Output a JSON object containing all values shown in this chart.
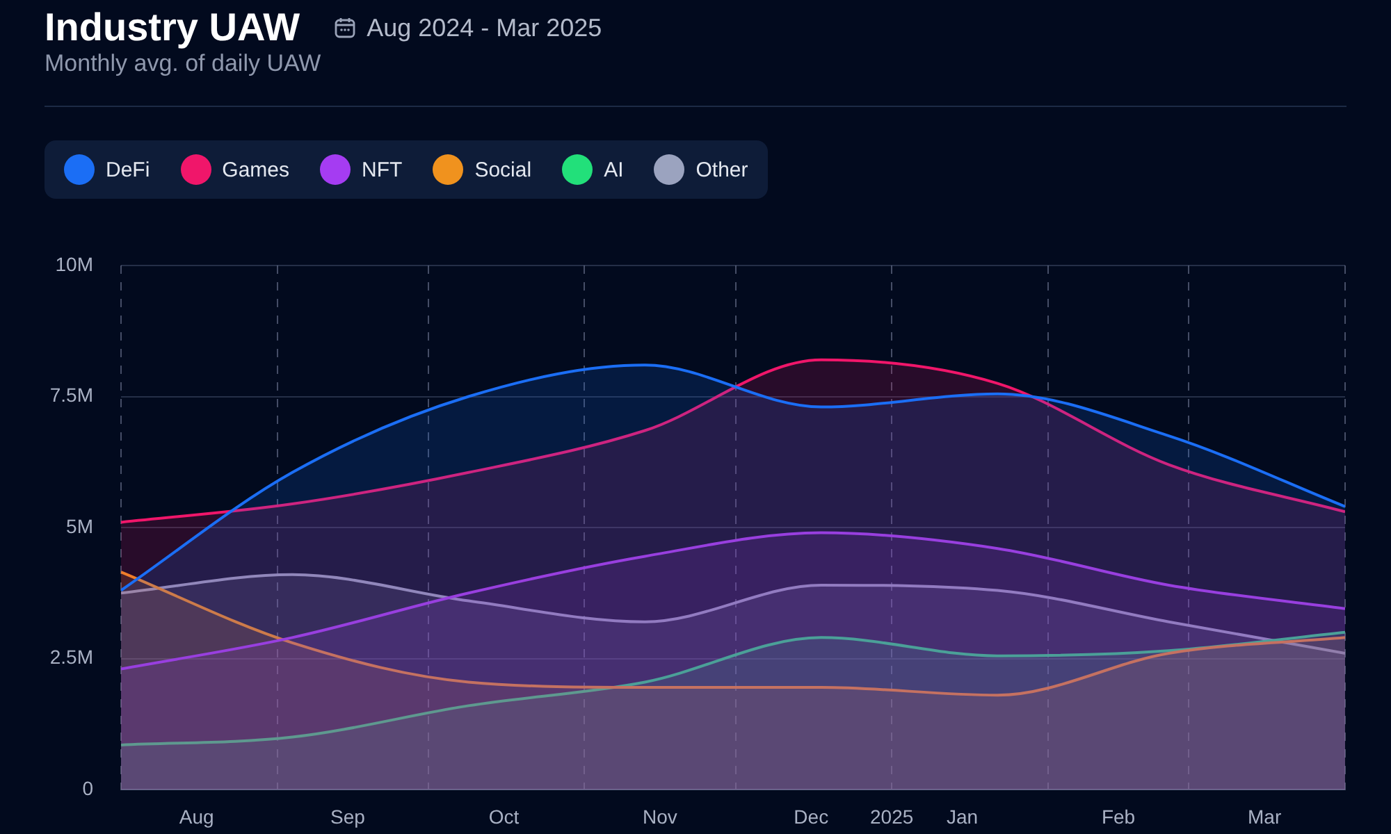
{
  "chart_data": {
    "type": "area",
    "title": "Industry UAW",
    "subtitle": "Monthly avg. of daily UAW",
    "annotations": [
      "Aug 2024 - Mar 2025"
    ],
    "x": [
      "2024-08-01",
      "2024-09-04",
      "2024-10-09",
      "2024-11-13",
      "2024-12-18",
      "2025-01-22",
      "2025-02-25",
      "2025-04-01"
    ],
    "series": [
      {
        "name": "DeFi",
        "color": "#1b6ef5",
        "values": [
          3.8,
          6.05,
          7.5,
          8.1,
          7.3,
          7.55,
          6.75,
          5.4
        ]
      },
      {
        "name": "Games",
        "color": "#f0166a",
        "values": [
          5.1,
          5.45,
          6.05,
          6.85,
          8.2,
          7.75,
          6.2,
          5.3
        ]
      },
      {
        "name": "NFT",
        "color": "#a53cf2",
        "values": [
          2.3,
          2.9,
          3.75,
          4.45,
          4.9,
          4.6,
          3.9,
          3.45
        ]
      },
      {
        "name": "Social",
        "color": "#f0921e",
        "values": [
          4.15,
          2.8,
          2.05,
          1.95,
          1.95,
          1.8,
          2.6,
          2.9
        ]
      },
      {
        "name": "AI",
        "color": "#22e07a",
        "values": [
          0.85,
          1.0,
          1.6,
          2.05,
          2.9,
          2.55,
          2.65,
          3.0
        ]
      },
      {
        "name": "Other",
        "color": "#9ba3bf",
        "values": [
          3.75,
          4.1,
          3.6,
          3.2,
          3.9,
          3.8,
          3.2,
          2.6
        ]
      }
    ],
    "xlim": [
      "2024-08-01",
      "2025-04-01"
    ],
    "xticks": [
      {
        "value": "2024-08-01",
        "label": null
      },
      {
        "value": "2024-08-16",
        "label": "Aug"
      },
      {
        "value": "2024-09-01",
        "label": null
      },
      {
        "value": "2024-09-15",
        "label": "Sep"
      },
      {
        "value": "2024-10-01",
        "label": null
      },
      {
        "value": "2024-10-16",
        "label": "Oct"
      },
      {
        "value": "2024-11-01",
        "label": null
      },
      {
        "value": "2024-11-16",
        "label": "Nov"
      },
      {
        "value": "2024-12-01",
        "label": null
      },
      {
        "value": "2024-12-16",
        "label": "Dec"
      },
      {
        "value": "2025-01-01",
        "label": "2025"
      },
      {
        "value": "2025-01-15",
        "label": "Jan"
      },
      {
        "value": "2025-02-01",
        "label": null
      },
      {
        "value": "2025-02-15",
        "label": "Feb"
      },
      {
        "value": "2025-03-01",
        "label": null
      },
      {
        "value": "2025-03-16",
        "label": "Mar"
      },
      {
        "value": "2025-04-01",
        "label": null
      }
    ],
    "ylim": [
      0,
      10
    ],
    "yticks": [
      0,
      {
        "value": 2.5,
        "label": "2.5M"
      },
      {
        "value": 5,
        "label": "5M"
      },
      {
        "value": 7.5,
        "label": "7.5M"
      },
      {
        "value": 10,
        "label": "10M"
      }
    ],
    "grid": true,
    "legend": "top left"
  }
}
